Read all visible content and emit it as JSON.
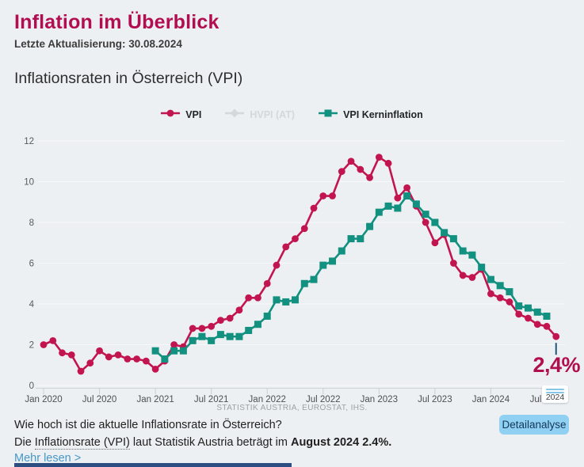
{
  "header": {
    "title": "Inflation im Überblick",
    "last_update": "Letzte Aktualisierung: 30.08.2024"
  },
  "section": {
    "title": "Inflationsraten in Österreich (VPI)"
  },
  "legend": [
    {
      "label": "VPI",
      "color": "#c2154f",
      "marker": "circle",
      "active": true
    },
    {
      "label": "HVPI (AT)",
      "color": "#d3d8db",
      "marker": "diamond",
      "active": false
    },
    {
      "label": "VPI Kerninflation",
      "color": "#139180",
      "marker": "square",
      "active": true
    }
  ],
  "chart_data": {
    "type": "line",
    "title": "Inflationsraten in Österreich (VPI)",
    "ylim": [
      0,
      12
    ],
    "y_ticks": [
      0,
      2,
      4,
      6,
      8,
      10,
      12
    ],
    "x_ticks": [
      "Jan 2020",
      "Jul 2020",
      "Jan 2021",
      "Jul 2021",
      "Jan 2022",
      "Jul 2022",
      "Jan 2023",
      "Jul 2023",
      "Jan 2024",
      "Jul 2024"
    ],
    "grid": true,
    "legend_position": "top",
    "categories": [
      "Jan 2020",
      "Feb 2020",
      "Mär 2020",
      "Apr 2020",
      "Mai 2020",
      "Jun 2020",
      "Jul 2020",
      "Aug 2020",
      "Sep 2020",
      "Okt 2020",
      "Nov 2020",
      "Dez 2020",
      "Jan 2021",
      "Feb 2021",
      "Mär 2021",
      "Apr 2021",
      "Mai 2021",
      "Jun 2021",
      "Jul 2021",
      "Aug 2021",
      "Sep 2021",
      "Okt 2021",
      "Nov 2021",
      "Dez 2021",
      "Jan 2022",
      "Feb 2022",
      "Mär 2022",
      "Apr 2022",
      "Mai 2022",
      "Jun 2022",
      "Jul 2022",
      "Aug 2022",
      "Sep 2022",
      "Okt 2022",
      "Nov 2022",
      "Dez 2022",
      "Jan 2023",
      "Feb 2023",
      "Mär 2023",
      "Apr 2023",
      "Mai 2023",
      "Jun 2023",
      "Jul 2023",
      "Aug 2023",
      "Sep 2023",
      "Okt 2023",
      "Nov 2023",
      "Dez 2023",
      "Jan 2024",
      "Feb 2024",
      "Mär 2024",
      "Apr 2024",
      "Mai 2024",
      "Jun 2024",
      "Jul 2024",
      "Aug 2024"
    ],
    "series": [
      {
        "name": "VPI",
        "color": "#c2154f",
        "marker": "circle",
        "start_index": 0,
        "visible": true,
        "values": [
          2.0,
          2.2,
          1.6,
          1.5,
          0.7,
          1.1,
          1.7,
          1.4,
          1.5,
          1.3,
          1.3,
          1.2,
          0.8,
          1.2,
          2.0,
          1.9,
          2.8,
          2.8,
          2.9,
          3.2,
          3.3,
          3.7,
          4.3,
          4.3,
          5.0,
          5.9,
          6.8,
          7.2,
          7.7,
          8.7,
          9.3,
          9.3,
          10.5,
          11.0,
          10.6,
          10.2,
          11.2,
          10.9,
          9.2,
          9.7,
          8.8,
          8.0,
          7.0,
          7.4,
          6.0,
          5.4,
          5.3,
          5.7,
          4.5,
          4.3,
          4.1,
          3.5,
          3.3,
          3.0,
          2.9,
          2.4
        ]
      },
      {
        "name": "HVPI (AT)",
        "color": "#d3d8db",
        "marker": "diamond",
        "start_index": 0,
        "visible": false,
        "values": []
      },
      {
        "name": "VPI Kerninflation",
        "color": "#139180",
        "marker": "square",
        "start_index": 12,
        "visible": true,
        "values": [
          1.7,
          1.3,
          1.7,
          1.7,
          2.2,
          2.4,
          2.2,
          2.5,
          2.4,
          2.4,
          2.7,
          3.0,
          3.4,
          4.2,
          4.1,
          4.2,
          5.0,
          5.2,
          5.9,
          6.1,
          6.6,
          7.2,
          7.2,
          7.8,
          8.5,
          8.8,
          8.7,
          9.3,
          8.9,
          8.4,
          8.0,
          7.5,
          7.2,
          6.6,
          6.4,
          5.8,
          5.2,
          4.9,
          4.6,
          3.9,
          3.8,
          3.6,
          3.4
        ]
      }
    ],
    "annotation": {
      "text": "2,4%",
      "category": "Aug 2024",
      "value": 2.4
    }
  },
  "slider": {
    "label": "2024",
    "tick_prefix": "Jul"
  },
  "source": "STATISTIK AUSTRIA, EUROSTAT, IHS.",
  "footer": {
    "question": "Wie hoch ist die aktuelle Inflationsrate in Österreich?",
    "answer_prefix": "Die ",
    "answer_term": "Inflationsrate (VPI)",
    "answer_mid": " laut Statistik Austria beträgt im ",
    "answer_bold": "August 2024 2.4%.",
    "more_link": "Mehr lesen >",
    "detail_button": "Detailanalyse"
  },
  "colors": {
    "accent_crimson": "#c2154f",
    "accent_teal": "#139180",
    "disabled_gray": "#d3d8db",
    "background": "#edf0f2",
    "link_blue": "#4697c9",
    "button_blue": "#90d0f2",
    "annotation_line": "#1f567e",
    "bottom_bar": "#2c4e80"
  }
}
